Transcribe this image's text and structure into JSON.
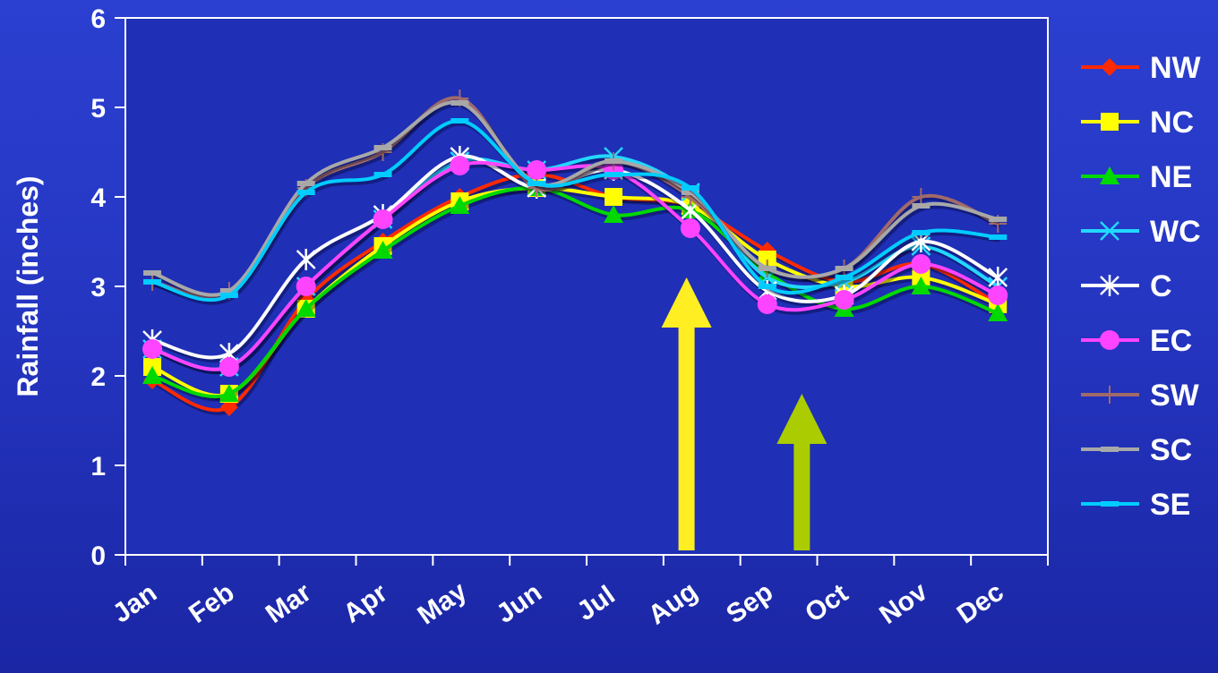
{
  "chart_data": {
    "type": "line",
    "title": "",
    "xlabel": "",
    "ylabel": "Rainfall (inches)",
    "ylim": [
      0,
      6
    ],
    "yticks": [
      "0",
      "1",
      "2",
      "3",
      "4",
      "5",
      "6"
    ],
    "categories": [
      "Jan",
      "Feb",
      "Mar",
      "Apr",
      "May",
      "Jun",
      "Jul",
      "Aug",
      "Sep",
      "Oct",
      "Nov",
      "Dec"
    ],
    "legend_position": "right",
    "grid": false,
    "plot_background": "#1f2fb6",
    "series": [
      {
        "name": "NW",
        "color": "#ff2a00",
        "marker": "diamond",
        "values": [
          1.95,
          1.65,
          2.85,
          3.5,
          4.0,
          4.25,
          4.0,
          3.9,
          3.4,
          3.05,
          3.25,
          2.8
        ]
      },
      {
        "name": "NC",
        "color": "#ffff00",
        "marker": "square",
        "values": [
          2.1,
          1.8,
          2.75,
          3.45,
          3.95,
          4.1,
          4.0,
          3.9,
          3.3,
          3.0,
          3.1,
          2.8
        ]
      },
      {
        "name": "NE",
        "color": "#00d800",
        "marker": "triangle",
        "values": [
          2.0,
          1.8,
          2.75,
          3.4,
          3.9,
          4.1,
          3.8,
          3.85,
          3.15,
          2.75,
          3.0,
          2.7
        ]
      },
      {
        "name": "WC",
        "color": "#22d8ff",
        "marker": "x",
        "values": [
          2.3,
          2.1,
          3.0,
          3.75,
          4.4,
          4.3,
          4.45,
          4.05,
          3.1,
          3.05,
          3.45,
          3.0
        ]
      },
      {
        "name": "C",
        "color": "#ffffff",
        "marker": "star",
        "values": [
          2.4,
          2.25,
          3.3,
          3.8,
          4.45,
          4.1,
          4.3,
          3.85,
          2.95,
          2.9,
          3.5,
          3.1
        ]
      },
      {
        "name": "EC",
        "color": "#ff44ff",
        "marker": "circle",
        "values": [
          2.3,
          2.1,
          3.0,
          3.75,
          4.35,
          4.3,
          4.3,
          3.65,
          2.8,
          2.85,
          3.25,
          2.9
        ]
      },
      {
        "name": "SW",
        "color": "#a06a6a",
        "marker": "plus",
        "values": [
          3.05,
          2.95,
          4.1,
          4.5,
          5.1,
          4.1,
          4.4,
          4.0,
          3.2,
          3.2,
          4.0,
          3.7
        ]
      },
      {
        "name": "SC",
        "color": "#a8a8a8",
        "marker": "dash",
        "values": [
          3.15,
          2.95,
          4.15,
          4.55,
          5.05,
          4.15,
          4.4,
          4.05,
          3.2,
          3.2,
          3.9,
          3.75
        ]
      },
      {
        "name": "SE",
        "color": "#00ccff",
        "marker": "dash",
        "values": [
          3.05,
          2.9,
          4.05,
          4.25,
          4.85,
          4.15,
          4.25,
          4.1,
          3.0,
          3.1,
          3.6,
          3.55
        ]
      }
    ],
    "annotations": [
      {
        "type": "arrow",
        "color": "#ffee22",
        "x_index": 7.0,
        "y_from": 0.05,
        "y_to": 3.1
      },
      {
        "type": "arrow",
        "color": "#aacc00",
        "x_index": 8.5,
        "y_from": 0.05,
        "y_to": 1.8
      }
    ]
  }
}
